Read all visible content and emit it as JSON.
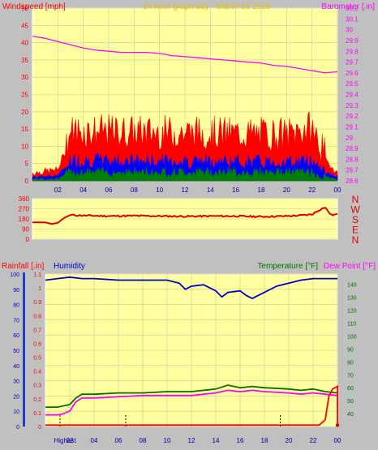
{
  "header": {
    "left_label": "Windspeed [mph]",
    "center_label": "24 hour graph day - March 31 2025",
    "right_label": "Barometer [.in]"
  },
  "colors": {
    "plot_bg": "#ffffa0",
    "frame": "#c0c0c0",
    "wind_gust": "#ff0000",
    "wind_avg": "#0000ff",
    "wind_min": "#008000",
    "barometer": "#ff00ff",
    "direction": "#e00000",
    "humidity": "#0000cc",
    "temperature": "#007000",
    "dewpoint": "#ff00ff",
    "rainfall": "#ff0000",
    "title_yellow": "#e0c000"
  },
  "chart_data": [
    {
      "type": "line",
      "title": "24 hour graph day - March 31 2025",
      "x_tick_labels": [
        "02",
        "04",
        "06",
        "08",
        "10",
        "12",
        "14",
        "16",
        "18",
        "20",
        "22",
        "00"
      ],
      "xlim_hours": [
        0,
        24
      ],
      "left_axis": {
        "label": "Windspeed [mph]",
        "ticks": [
          0,
          5,
          10,
          15,
          20,
          25,
          30,
          35,
          40,
          45,
          50
        ],
        "ylim": [
          0,
          50
        ]
      },
      "right_axis": {
        "label": "Barometer [.in]",
        "ticks": [
          28.6,
          28.7,
          28.8,
          28.9,
          29.0,
          29.1,
          29.2,
          29.3,
          29.4,
          29.5,
          29.6,
          29.7,
          29.8,
          29.9,
          30.0,
          30.1,
          30.2
        ],
        "tick_labels": [
          "28.6",
          "28.7",
          "28.8",
          "28.9",
          "29",
          "29.1",
          "29.2",
          "29.3",
          "29.4",
          "29.5",
          "29.6",
          "29.7",
          "29.8",
          "29.9",
          "30",
          "30.1",
          "30.2"
        ],
        "ylim": [
          28.6,
          30.2
        ]
      },
      "grid": true,
      "series": [
        {
          "id": "barometer",
          "axis": "right",
          "x": [
            0,
            1,
            2,
            3,
            4,
            5,
            6,
            7,
            8,
            9,
            10,
            11,
            12,
            13,
            14,
            15,
            16,
            17,
            18,
            19,
            20,
            21,
            22,
            23,
            24
          ],
          "y": [
            29.94,
            29.92,
            29.89,
            29.86,
            29.83,
            29.81,
            29.8,
            29.79,
            29.79,
            29.79,
            29.78,
            29.76,
            29.75,
            29.74,
            29.73,
            29.72,
            29.71,
            29.7,
            29.69,
            29.67,
            29.66,
            29.64,
            29.62,
            29.6,
            29.61
          ]
        },
        {
          "id": "gust",
          "axis": "left",
          "profile_hours": [
            0,
            2,
            3,
            20,
            22,
            23,
            24
          ],
          "profile_values": [
            2,
            3,
            13,
            12,
            14,
            6,
            2
          ]
        },
        {
          "id": "average",
          "axis": "left",
          "profile_hours": [
            0,
            2,
            3,
            20,
            22,
            23,
            24
          ],
          "profile_values": [
            1,
            1.5,
            5.5,
            5,
            5.5,
            2.5,
            1
          ]
        },
        {
          "id": "minimum",
          "axis": "left",
          "profile_hours": [
            0,
            2,
            3,
            20,
            22,
            23,
            24
          ],
          "profile_values": [
            0.5,
            0.5,
            2.5,
            2.5,
            2.5,
            1,
            0.5
          ]
        }
      ]
    },
    {
      "type": "line",
      "left_axis": {
        "ticks": [
          0,
          90,
          180,
          270,
          360
        ],
        "ylim": [
          0,
          360
        ]
      },
      "direction_labels": [
        "N",
        "W",
        "S",
        "E",
        "N"
      ],
      "grid": true,
      "series": [
        {
          "id": "wind_direction",
          "x": [
            0,
            1,
            1.5,
            2,
            2.5,
            3,
            4,
            6,
            8,
            10,
            12,
            14,
            16,
            18,
            20,
            21,
            22,
            22.5,
            23,
            23.5,
            24
          ],
          "y": [
            150,
            150,
            135,
            145,
            190,
            215,
            210,
            205,
            208,
            205,
            203,
            205,
            205,
            200,
            205,
            210,
            220,
            255,
            285,
            215,
            220
          ]
        }
      ]
    },
    {
      "type": "line",
      "header_labels": {
        "rainfall": "Rainfall [.in]",
        "humidity": "Humidity",
        "temperature": "Temperature [°F]",
        "dewpoint": "Dew Point [°F]"
      },
      "x_tick_labels": [
        "Highest",
        "02",
        "04",
        "06",
        "08",
        "10",
        "12",
        "14",
        "16",
        "18",
        "20",
        "22",
        "00"
      ],
      "left_axis_humidity": {
        "ticks": [
          0,
          10,
          20,
          30,
          40,
          50,
          60,
          70,
          80,
          90,
          100
        ],
        "ylim": [
          0,
          100
        ]
      },
      "left_axis_rain": {
        "ticks": [
          0,
          0.1,
          0.2,
          0.3,
          0.4,
          0.5,
          0.6,
          0.7,
          0.8,
          0.9,
          1.0,
          1.1
        ],
        "tick_labels": [
          "0",
          "0.1",
          "0.2",
          "0.3",
          "0.4",
          "0.5",
          "0.6",
          "0.7",
          "0.8",
          "0.9",
          "1",
          "1.1"
        ],
        "ylim": [
          0,
          1.1
        ]
      },
      "right_axis_temp": {
        "ticks": [
          40,
          50,
          60,
          70,
          80,
          90,
          100,
          110,
          120,
          130,
          140
        ],
        "ylim": [
          30,
          148
        ]
      },
      "grid": true,
      "series": [
        {
          "id": "humidity",
          "axis": "humidity",
          "x": [
            0,
            1,
            2,
            3,
            4,
            6,
            8,
            10,
            11,
            11.5,
            12,
            13,
            14,
            14.5,
            15,
            16,
            16.5,
            17,
            17.5,
            18,
            19,
            20,
            21,
            22,
            23,
            24
          ],
          "y": [
            96,
            97,
            98,
            97,
            97,
            96,
            96,
            96,
            94,
            90,
            92,
            93,
            89,
            85,
            88,
            89,
            86,
            84,
            86,
            88,
            92,
            94,
            96,
            97,
            97,
            97
          ]
        },
        {
          "id": "temperature",
          "axis": "temp",
          "x": [
            0,
            1,
            1.5,
            2,
            2.5,
            3,
            4,
            6,
            8,
            10,
            12,
            13,
            14,
            15,
            16,
            17,
            18,
            20,
            21,
            22,
            23,
            24
          ],
          "y": [
            45,
            45,
            46,
            47,
            52,
            55,
            55,
            56,
            56,
            57,
            57,
            58,
            59,
            62,
            60,
            61,
            60,
            59,
            58,
            59,
            57,
            56
          ]
        },
        {
          "id": "dewpoint",
          "axis": "temp",
          "x": [
            0,
            1,
            1.5,
            2,
            2.5,
            3,
            4,
            6,
            8,
            10,
            12,
            13,
            14,
            15,
            16,
            17,
            18,
            20,
            21,
            22,
            23,
            24
          ],
          "y": [
            39,
            39,
            40,
            42,
            49,
            52,
            52,
            53,
            54,
            54,
            54,
            55,
            56,
            58,
            57,
            58,
            57,
            56,
            55,
            56,
            55,
            54
          ]
        },
        {
          "id": "rainfall",
          "axis": "rain",
          "x": [
            0,
            10,
            20,
            22.5,
            23,
            23.3,
            23.6,
            24,
            24
          ],
          "y": [
            0.01,
            0.01,
            0.01,
            0.01,
            0.05,
            0.22,
            0.27,
            0.29,
            0.01
          ]
        }
      ]
    }
  ]
}
